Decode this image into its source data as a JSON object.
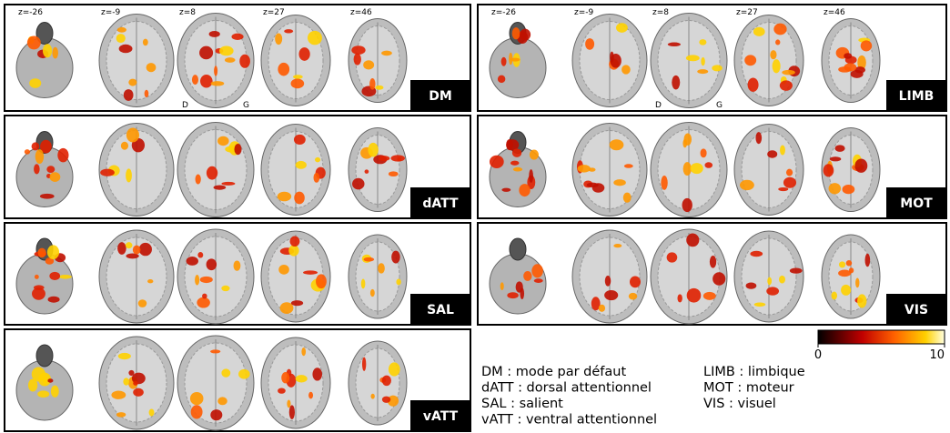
{
  "slice_labels": [
    "z=-26",
    "z=-9",
    "z=8",
    "z=27",
    "z=46"
  ],
  "orientation": {
    "left": "D",
    "right": "G"
  },
  "panels": [
    {
      "label": "DM"
    },
    {
      "label": "dATT"
    },
    {
      "label": "SAL"
    },
    {
      "label": "vATT"
    },
    {
      "label": "LIMB"
    },
    {
      "label": "MOT"
    },
    {
      "label": "VIS"
    }
  ],
  "colorbar": {
    "lim": [
      0,
      10
    ],
    "ticks": [
      0,
      10
    ]
  },
  "legend": {
    "left": [
      "DM : mode par défaut",
      "dATT : dorsal attentionnel",
      "SAL : salient",
      "vATT : ventral attentionnel"
    ],
    "right": [
      "LIMB : limbique",
      "MOT : moteur",
      "VIS : visuel"
    ]
  }
}
